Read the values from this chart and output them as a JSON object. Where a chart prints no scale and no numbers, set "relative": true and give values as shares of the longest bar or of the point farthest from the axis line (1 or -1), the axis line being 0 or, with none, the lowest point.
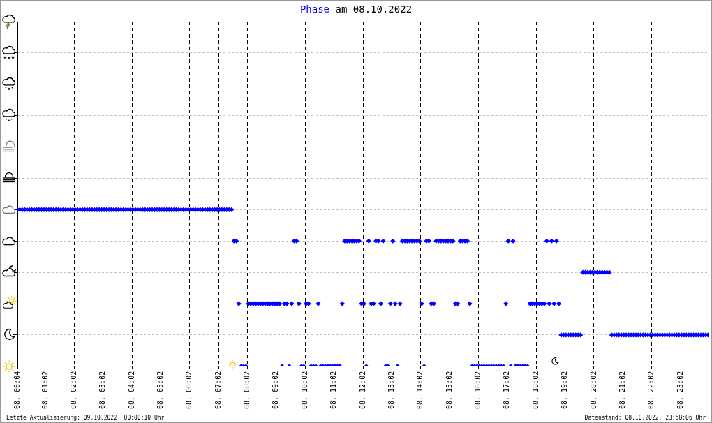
{
  "chart_data": {
    "type": "scatter",
    "title": "Phase am 08.10.2022",
    "annotations": [
      "Letzte Aktualisierung: 09.10.2022, 00:00:10 Uhr",
      "Datenstand: 08.10.2022, 23:58:06 Uhr"
    ],
    "x": [
      "2022-10-08T00:04",
      "2022-10-08T00:09",
      "2022-10-08T00:14",
      "2022-10-08T00:19",
      "2022-10-08T00:24",
      "2022-10-08T00:29",
      "2022-10-08T00:34",
      "2022-10-08T00:39",
      "2022-10-08T00:44",
      "2022-10-08T00:49",
      "2022-10-08T00:54",
      "2022-10-08T00:59",
      "2022-10-08T01:04",
      "2022-10-08T01:09",
      "2022-10-08T01:14",
      "2022-10-08T01:19",
      "2022-10-08T01:24",
      "2022-10-08T01:29",
      "2022-10-08T01:34",
      "2022-10-08T01:39",
      "2022-10-08T01:44",
      "2022-10-08T01:49",
      "2022-10-08T01:54",
      "2022-10-08T01:59",
      "2022-10-08T02:04",
      "2022-10-08T02:09",
      "2022-10-08T02:14",
      "2022-10-08T02:19",
      "2022-10-08T02:24",
      "2022-10-08T02:29",
      "2022-10-08T02:34",
      "2022-10-08T02:39",
      "2022-10-08T02:44",
      "2022-10-08T02:49",
      "2022-10-08T02:54",
      "2022-10-08T02:59",
      "2022-10-08T03:04",
      "2022-10-08T03:09",
      "2022-10-08T03:14",
      "2022-10-08T03:19",
      "2022-10-08T03:24",
      "2022-10-08T03:29",
      "2022-10-08T03:34",
      "2022-10-08T03:39",
      "2022-10-08T03:44",
      "2022-10-08T03:49",
      "2022-10-08T03:54",
      "2022-10-08T03:59",
      "2022-10-08T04:04",
      "2022-10-08T04:09",
      "2022-10-08T04:14",
      "2022-10-08T04:19",
      "2022-10-08T04:24",
      "2022-10-08T04:29",
      "2022-10-08T04:34",
      "2022-10-08T04:39",
      "2022-10-08T04:44",
      "2022-10-08T04:49",
      "2022-10-08T04:54",
      "2022-10-08T04:59",
      "2022-10-08T05:04",
      "2022-10-08T05:09",
      "2022-10-08T05:14",
      "2022-10-08T05:19",
      "2022-10-08T05:24",
      "2022-10-08T05:29",
      "2022-10-08T05:34",
      "2022-10-08T05:39",
      "2022-10-08T05:44",
      "2022-10-08T05:49",
      "2022-10-08T05:54",
      "2022-10-08T05:59",
      "2022-10-08T06:04",
      "2022-10-08T06:09",
      "2022-10-08T06:14",
      "2022-10-08T06:19",
      "2022-10-08T06:24",
      "2022-10-08T06:29",
      "2022-10-08T06:34",
      "2022-10-08T06:39",
      "2022-10-08T06:44",
      "2022-10-08T06:49",
      "2022-10-08T06:54",
      "2022-10-08T06:59",
      "2022-10-08T07:04",
      "2022-10-08T07:09",
      "2022-10-08T07:14",
      "2022-10-08T07:19",
      "2022-10-08T07:24",
      "2022-10-08T07:29",
      "2022-10-08T07:34",
      "2022-10-08T07:39",
      "2022-10-08T07:44",
      "2022-10-08T07:49",
      "2022-10-08T07:54",
      "2022-10-08T07:59",
      "2022-10-08T08:04",
      "2022-10-08T08:09",
      "2022-10-08T08:14",
      "2022-10-08T08:19",
      "2022-10-08T08:24",
      "2022-10-08T08:29",
      "2022-10-08T08:34",
      "2022-10-08T08:39",
      "2022-10-08T08:44",
      "2022-10-08T08:49",
      "2022-10-08T08:54",
      "2022-10-08T08:59",
      "2022-10-08T09:04",
      "2022-10-08T09:09",
      "2022-10-08T09:14",
      "2022-10-08T09:19",
      "2022-10-08T09:24",
      "2022-10-08T09:29",
      "2022-10-08T09:34",
      "2022-10-08T09:39",
      "2022-10-08T09:44",
      "2022-10-08T09:49",
      "2022-10-08T09:54",
      "2022-10-08T09:59",
      "2022-10-08T10:04",
      "2022-10-08T10:09",
      "2022-10-08T10:14",
      "2022-10-08T10:19",
      "2022-10-08T10:24",
      "2022-10-08T10:29",
      "2022-10-08T10:34",
      "2022-10-08T10:39",
      "2022-10-08T10:44",
      "2022-10-08T10:49",
      "2022-10-08T10:54",
      "2022-10-08T10:59",
      "2022-10-08T11:04",
      "2022-10-08T11:09",
      "2022-10-08T11:14",
      "2022-10-08T11:19",
      "2022-10-08T11:24",
      "2022-10-08T11:29",
      "2022-10-08T11:34",
      "2022-10-08T11:39",
      "2022-10-08T11:44",
      "2022-10-08T11:49",
      "2022-10-08T11:54",
      "2022-10-08T11:59",
      "2022-10-08T12:04",
      "2022-10-08T12:09",
      "2022-10-08T12:14",
      "2022-10-08T12:19",
      "2022-10-08T12:24",
      "2022-10-08T12:29",
      "2022-10-08T12:34",
      "2022-10-08T12:39",
      "2022-10-08T12:44",
      "2022-10-08T12:49",
      "2022-10-08T12:54",
      "2022-10-08T12:59",
      "2022-10-08T13:04",
      "2022-10-08T13:09",
      "2022-10-08T13:14",
      "2022-10-08T13:19",
      "2022-10-08T13:24",
      "2022-10-08T13:29",
      "2022-10-08T13:34",
      "2022-10-08T13:39",
      "2022-10-08T13:44",
      "2022-10-08T13:49",
      "2022-10-08T13:54",
      "2022-10-08T13:59",
      "2022-10-08T14:04",
      "2022-10-08T14:09",
      "2022-10-08T14:14",
      "2022-10-08T14:19",
      "2022-10-08T14:24",
      "2022-10-08T14:29",
      "2022-10-08T14:34",
      "2022-10-08T14:39",
      "2022-10-08T14:44",
      "2022-10-08T14:49",
      "2022-10-08T14:54",
      "2022-10-08T14:59",
      "2022-10-08T15:04",
      "2022-10-08T15:09",
      "2022-10-08T15:14",
      "2022-10-08T15:19",
      "2022-10-08T15:24",
      "2022-10-08T15:29",
      "2022-10-08T15:34",
      "2022-10-08T15:39",
      "2022-10-08T15:44",
      "2022-10-08T15:49",
      "2022-10-08T15:54",
      "2022-10-08T15:59",
      "2022-10-08T16:04",
      "2022-10-08T16:09",
      "2022-10-08T16:14",
      "2022-10-08T16:19",
      "2022-10-08T16:24",
      "2022-10-08T16:29",
      "2022-10-08T16:34",
      "2022-10-08T16:39",
      "2022-10-08T16:44",
      "2022-10-08T16:49",
      "2022-10-08T16:54",
      "2022-10-08T16:59",
      "2022-10-08T17:04",
      "2022-10-08T17:09",
      "2022-10-08T17:14",
      "2022-10-08T17:19",
      "2022-10-08T17:24",
      "2022-10-08T17:29",
      "2022-10-08T17:34",
      "2022-10-08T17:39",
      "2022-10-08T17:44",
      "2022-10-08T17:49",
      "2022-10-08T17:54",
      "2022-10-08T17:59",
      "2022-10-08T18:04",
      "2022-10-08T18:09",
      "2022-10-08T18:14",
      "2022-10-08T18:19",
      "2022-10-08T18:24",
      "2022-10-08T18:29",
      "2022-10-08T18:34",
      "2022-10-08T18:39",
      "2022-10-08T18:44",
      "2022-10-08T18:49",
      "2022-10-08T18:54",
      "2022-10-08T18:59",
      "2022-10-08T19:04",
      "2022-10-08T19:09",
      "2022-10-08T19:14",
      "2022-10-08T19:19",
      "2022-10-08T19:24",
      "2022-10-08T19:29",
      "2022-10-08T19:34",
      "2022-10-08T19:39",
      "2022-10-08T19:44",
      "2022-10-08T19:49",
      "2022-10-08T19:54",
      "2022-10-08T19:59",
      "2022-10-08T20:04",
      "2022-10-08T20:09",
      "2022-10-08T20:14",
      "2022-10-08T20:19",
      "2022-10-08T20:24",
      "2022-10-08T20:29",
      "2022-10-08T20:34",
      "2022-10-08T20:39",
      "2022-10-08T20:44",
      "2022-10-08T20:49",
      "2022-10-08T20:54",
      "2022-10-08T20:59",
      "2022-10-08T21:04",
      "2022-10-08T21:09",
      "2022-10-08T21:14",
      "2022-10-08T21:19",
      "2022-10-08T21:24",
      "2022-10-08T21:29",
      "2022-10-08T21:34",
      "2022-10-08T21:39",
      "2022-10-08T21:44",
      "2022-10-08T21:49",
      "2022-10-08T21:54",
      "2022-10-08T21:59",
      "2022-10-08T22:04",
      "2022-10-08T22:09",
      "2022-10-08T22:14",
      "2022-10-08T22:19",
      "2022-10-08T22:24",
      "2022-10-08T22:29",
      "2022-10-08T22:34",
      "2022-10-08T22:39",
      "2022-10-08T22:44",
      "2022-10-08T22:49",
      "2022-10-08T22:54",
      "2022-10-08T22:59",
      "2022-10-08T23:04",
      "2022-10-08T23:09",
      "2022-10-08T23:14",
      "2022-10-08T23:19",
      "2022-10-08T23:24",
      "2022-10-08T23:29",
      "2022-10-08T23:34",
      "2022-10-08T23:39",
      "2022-10-08T23:44",
      "2022-10-08T23:49",
      "2022-10-08T23:54",
      "2022-10-08T23:59"
    ],
    "values": [
      1,
      1,
      1,
      1,
      1,
      1,
      1,
      1,
      1,
      1,
      1,
      1,
      1,
      1,
      1,
      1,
      1,
      1,
      1,
      1,
      1,
      1,
      1,
      1,
      1,
      1,
      1,
      1,
      1,
      1,
      1,
      1,
      1,
      1,
      1,
      1,
      1,
      1,
      1,
      1,
      1,
      1,
      1,
      1,
      1,
      1,
      1,
      1,
      1,
      1,
      1,
      1,
      1,
      1,
      1,
      1,
      1,
      1,
      1,
      1,
      1,
      1,
      1,
      1,
      1,
      1,
      1,
      1,
      1,
      1,
      1,
      1,
      1,
      1,
      1,
      1,
      1,
      1,
      1,
      1,
      1,
      1,
      1,
      1,
      1,
      1,
      1,
      1,
      1,
      1,
      0.8,
      0.8,
      0.4,
      0,
      0,
      0,
      0.4,
      0.4,
      0.4,
      0.4,
      0.4,
      0.4,
      0.4,
      0.4,
      0.4,
      0.4,
      0.4,
      0.4,
      0.4,
      0.4,
      0,
      0.4,
      0.4,
      0,
      0.4,
      0.8,
      0.8,
      0.4,
      0,
      0,
      0.4,
      0.4,
      0,
      0,
      0,
      0.4,
      0,
      0,
      0,
      0,
      0,
      0,
      0,
      0,
      0,
      0.4,
      0.8,
      0.8,
      0.8,
      0.8,
      0.8,
      0.8,
      0.8,
      0.4,
      0.4,
      0,
      0.8,
      0.4,
      0.4,
      0.8,
      0.8,
      0.4,
      0.8,
      0,
      0,
      0.4,
      0.8,
      0.4,
      0,
      0.4,
      0.8,
      0.8,
      0.8,
      0.8,
      0.8,
      0.8,
      0.8,
      0.8,
      0.4,
      0,
      0.8,
      0.8,
      0.4,
      0.4,
      0.8,
      0.8,
      0.8,
      0.8,
      0.8,
      0.8,
      0.8,
      0.8,
      0.4,
      0.4,
      0.8,
      0.8,
      0.8,
      0.8,
      0.4,
      0,
      0,
      0,
      0,
      0,
      0,
      0,
      0,
      0,
      0,
      0,
      0,
      0,
      0,
      0.4,
      0.8,
      0,
      0.8,
      0,
      0,
      0,
      0,
      0,
      0,
      0.4,
      0.4,
      0.4,
      0.4,
      0.4,
      0.4,
      0.4,
      0.8,
      0.4,
      0.8,
      0.4,
      0.8,
      0.4,
      0.2,
      0.2,
      0.2,
      0.2,
      0.2,
      0.2,
      0.2,
      0.2,
      0.2,
      0.6,
      0.6,
      0.6,
      0.6,
      0.6,
      0.6,
      0.6,
      0.6,
      0.6,
      0.6,
      0.6,
      0.6,
      0.2,
      0.2,
      0.2,
      0.2,
      0.2,
      0.2,
      0.2,
      0.2,
      0.2,
      0.2,
      0.2,
      0.2,
      0.2,
      0.2,
      0.2,
      0.2,
      0.2,
      0.2,
      0.2,
      0.2,
      0.2,
      0.2,
      0.2,
      0.2,
      0.2,
      0.2,
      0.2,
      0.2,
      0.2,
      0.2,
      0.2,
      0.2,
      0.2,
      0.2,
      0.2,
      0.2,
      0.2,
      0.2,
      0.2,
      0.2,
      0.2
    ],
    "relative": true,
    "color": "#0000ff",
    "marker": "diamond",
    "xlim": [
      "2022-10-08T00:04",
      "2022-10-09T00:00"
    ],
    "xticks": [
      {
        "value": "2022-10-08T00:04",
        "label": "08. 00:04"
      },
      {
        "value": "2022-10-08T01:02",
        "label": "08. 01:02"
      },
      {
        "value": "2022-10-08T02:02",
        "label": "08. 02:02"
      },
      {
        "value": "2022-10-08T03:02",
        "label": "08. 03:02"
      },
      {
        "value": "2022-10-08T04:02",
        "label": "08. 04:02"
      },
      {
        "value": "2022-10-08T05:02",
        "label": "08. 05:02"
      },
      {
        "value": "2022-10-08T06:02",
        "label": "08. 06:02"
      },
      {
        "value": "2022-10-08T07:02",
        "label": "08. 07:02"
      },
      {
        "value": "2022-10-08T08:02",
        "label": "08. 08:02"
      },
      {
        "value": "2022-10-08T09:02",
        "label": "08. 09:02"
      },
      {
        "value": "2022-10-08T10:02",
        "label": "08. 10:02"
      },
      {
        "value": "2022-10-08T11:02",
        "label": "08. 11:02"
      },
      {
        "value": "2022-10-08T12:02",
        "label": "08. 12:02"
      },
      {
        "value": "2022-10-08T13:02",
        "label": "08. 13:02"
      },
      {
        "value": "2022-10-08T14:02",
        "label": "08. 14:02"
      },
      {
        "value": "2022-10-08T15:02",
        "label": "08. 15:02"
      },
      {
        "value": "2022-10-08T16:02",
        "label": "08. 16:02"
      },
      {
        "value": "2022-10-08T17:02",
        "label": "08. 17:02"
      },
      {
        "value": "2022-10-08T18:02",
        "label": "08. 18:02"
      },
      {
        "value": "2022-10-08T19:02",
        "label": "08. 19:02"
      },
      {
        "value": "2022-10-08T20:02",
        "label": "08. 20:02"
      },
      {
        "value": "2022-10-08T21:02",
        "label": "08. 21:02"
      },
      {
        "value": "2022-10-08T22:02",
        "label": "08. 22:02"
      },
      {
        "value": "2022-10-08T23:02",
        "label": "08. 23:02"
      }
    ],
    "tick_labels": "x",
    "grid": true
  }
}
